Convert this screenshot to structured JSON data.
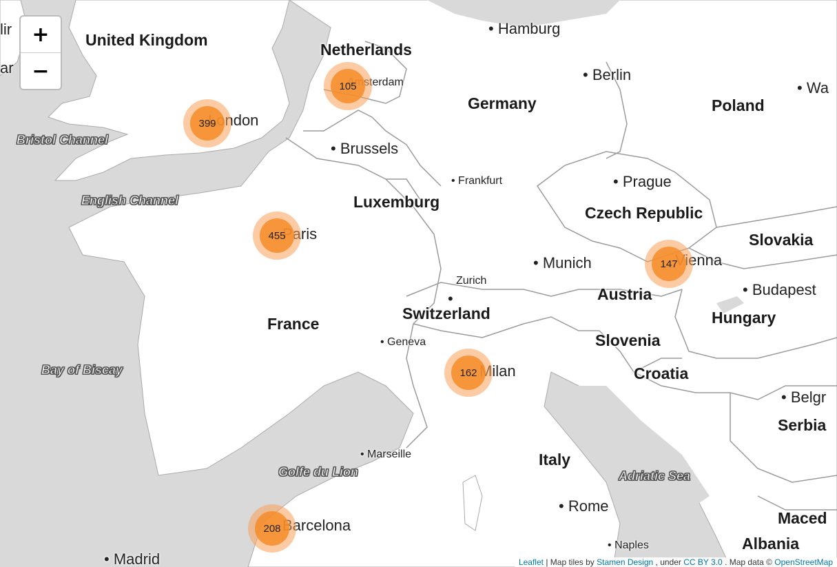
{
  "zoom": {
    "in_label": "+",
    "out_label": "−"
  },
  "countries": {
    "uk": "United Kingdom",
    "netherlands": "Netherlands",
    "germany": "Germany",
    "poland": "Poland",
    "luxemburg": "Luxemburg",
    "czech": "Czech Republic",
    "slovakia": "Slovakia",
    "austria": "Austria",
    "hungary": "Hungary",
    "switzerland": "Switzerland",
    "france": "France",
    "slovenia": "Slovenia",
    "croatia": "Croatia",
    "serbia": "Serbia",
    "italy": "Italy",
    "macedonia": "Maced",
    "albania": "Albania"
  },
  "cities": {
    "hamburg": "Hamburg",
    "berlin": "Berlin",
    "warsaw": "Wa",
    "amsterdam": "Amsterdam",
    "london": "London",
    "brussels": "Brussels",
    "frankfurt": "Frankfurt",
    "prague": "Prague",
    "paris": "Paris",
    "munich": "Munich",
    "vienna": "Vienna",
    "zurich": "Zurich",
    "budapest": "Budapest",
    "geneva": "Geneva",
    "milan": "Milan",
    "belgrade": "Belgr",
    "marseille": "Marseille",
    "rome": "Rome",
    "barcelona": "Barcelona",
    "naples": "Naples",
    "madrid": "Madrid",
    "dublin": "lir",
    "cardiff": "ar"
  },
  "water": {
    "bristol": "Bristol Channel",
    "english": "English Channel",
    "biscay": "Bay of Biscay",
    "lion": "Golfe du Lion",
    "adriatic": "Adriatic Sea"
  },
  "clusters": {
    "amsterdam": "105",
    "london": "399",
    "paris": "455",
    "vienna": "147",
    "milan": "162",
    "barcelona": "208"
  },
  "attribution": {
    "leaflet": "Leaflet",
    "tiles": "Map tiles by ",
    "stamen": "Stamen Design",
    "under": ", under ",
    "license": "CC BY 3.0",
    "data": ". Map data © ",
    "osm": "OpenStreetMap"
  },
  "colors": {
    "land": "#ffffff",
    "sea": "#d9d9d9",
    "border": "#9a9a9a",
    "cluster": "#f58c28"
  }
}
